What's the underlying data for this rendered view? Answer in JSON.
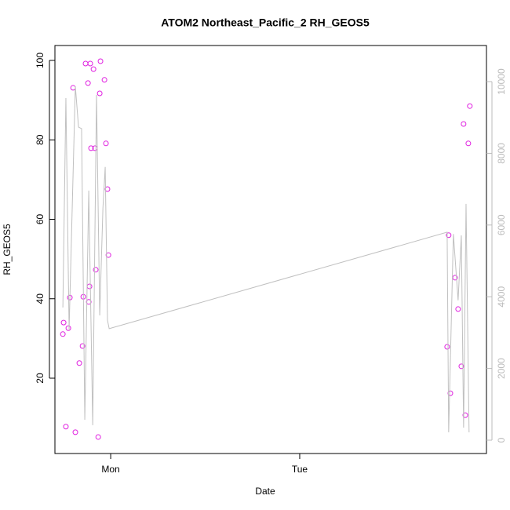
{
  "chart_data": {
    "type": "scatter",
    "title": "ATOM2 Northeast_Pacific_2 RH_GEOS5",
    "xlabel": "Date",
    "ylabel": "RH_GEOS5",
    "xlim": [
      0.705,
      2.988
    ],
    "xticks": [
      {
        "value": 1,
        "label": "Mon"
      },
      {
        "value": 2,
        "label": "Tue"
      }
    ],
    "ylim": [
      1.04,
      103.75
    ],
    "yticks": [
      20,
      40,
      60,
      80,
      100
    ],
    "y2lim": [
      -372,
      11007
    ],
    "y2ticks": [
      0,
      2000,
      4000,
      6000,
      8000,
      10000
    ],
    "series": [
      {
        "type": "scatter",
        "color": "#e020e0",
        "x": [
          0.747,
          0.751,
          0.763,
          0.776,
          0.784,
          0.801,
          0.813,
          0.834,
          0.851,
          0.855,
          0.867,
          0.88,
          0.884,
          0.888,
          0.892,
          0.896,
          0.909,
          0.917,
          0.921,
          0.934,
          0.942,
          0.946,
          0.967,
          0.975,
          0.983,
          0.988,
          2.78,
          2.788,
          2.797,
          2.822,
          2.838,
          2.855,
          2.867,
          2.876,
          2.892,
          2.9
        ],
        "values": [
          31.1,
          34.0,
          7.8,
          32.6,
          40.3,
          93.1,
          6.4,
          23.8,
          28.1,
          40.5,
          99.2,
          94.3,
          39.2,
          43.1,
          99.2,
          77.9,
          97.8,
          77.9,
          47.3,
          5.2,
          91.7,
          99.8,
          95.1,
          79.1,
          67.6,
          51.0,
          27.9,
          56.0,
          16.2,
          45.3,
          37.4,
          23.0,
          84.0,
          10.7,
          79.1,
          88.5
        ]
      },
      {
        "type": "line",
        "color": "#c0c0c0",
        "axis": "y2",
        "x": [
          0.747,
          0.763,
          0.78,
          0.813,
          0.83,
          0.846,
          0.863,
          0.884,
          0.905,
          0.925,
          0.942,
          0.959,
          0.971,
          0.983,
          0.992,
          2.78,
          2.788,
          2.813,
          2.838,
          2.855,
          2.867,
          2.88,
          2.896
        ],
        "values": [
          3700,
          9540,
          3090,
          9870,
          8730,
          8690,
          570,
          6960,
          420,
          9630,
          3480,
          6480,
          7620,
          3350,
          3110,
          5800,
          220,
          5750,
          3900,
          5710,
          350,
          6590,
          220
        ]
      }
    ]
  }
}
